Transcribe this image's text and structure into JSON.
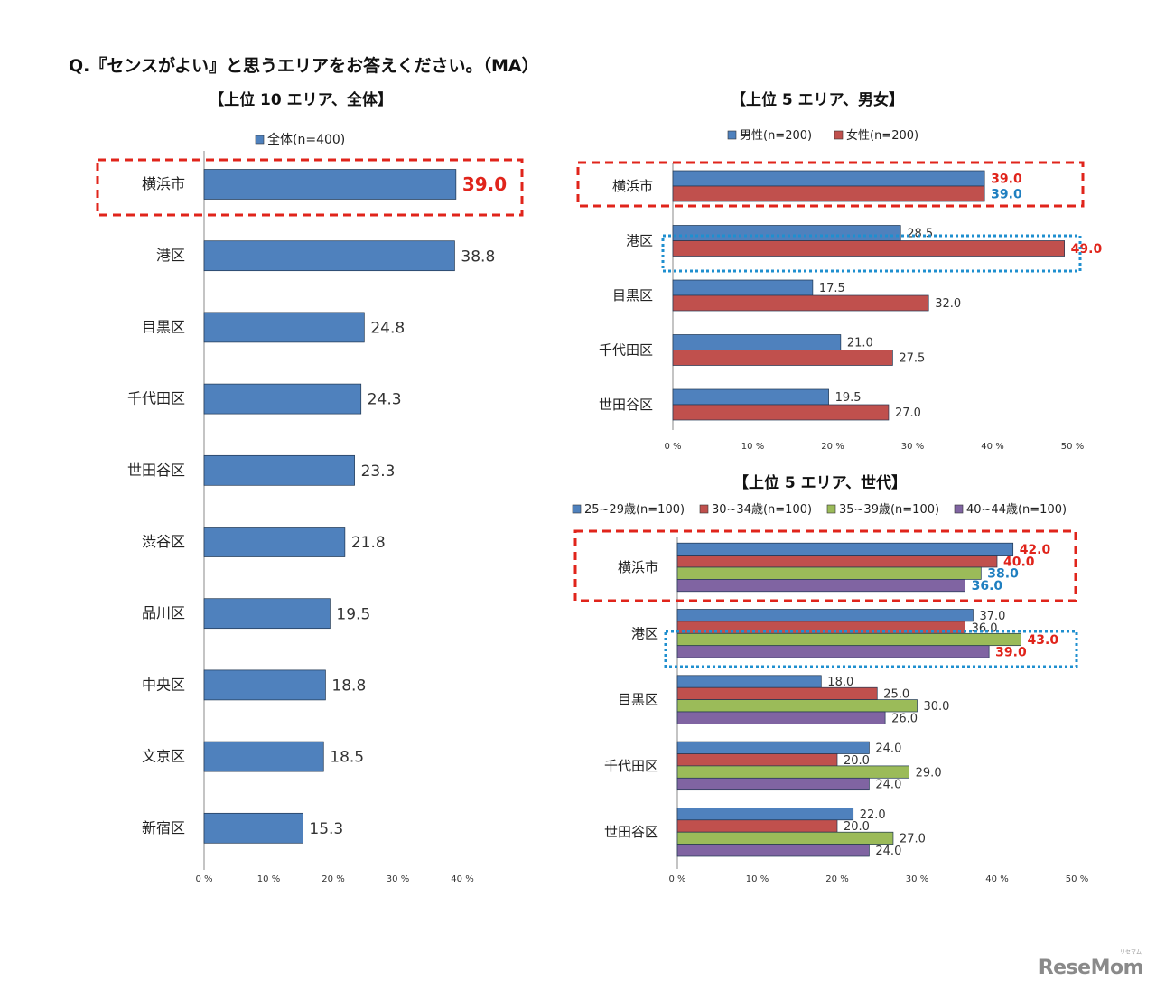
{
  "question": "Q.『センスがよい』と思うエリアをお答えください。（MA）",
  "watermark": "ReseMom",
  "watermark_sub": "リセマム",
  "colors": {
    "blue": "#4f81bd",
    "red": "#c0504d",
    "green": "#9bbb59",
    "purple": "#8064a2",
    "highlight_red": "#e0241b",
    "highlight_blue": "#1f7fc0",
    "frame_blue": "#1f8fcf"
  },
  "chart_data": [
    {
      "type": "bar",
      "title": "【上位 10 エリア、全体】",
      "orientation": "horizontal",
      "categories": [
        "横浜市",
        "港区",
        "目黒区",
        "千代田区",
        "世田谷区",
        "渋谷区",
        "品川区",
        "中央区",
        "文京区",
        "新宿区"
      ],
      "series": [
        {
          "name": "全体(n=400)",
          "color": "blue",
          "values": [
            39.0,
            38.8,
            24.8,
            24.3,
            23.3,
            21.8,
            19.5,
            18.8,
            18.5,
            15.3
          ],
          "labels": [
            "39.0",
            "38.8",
            "24.8",
            "24.3",
            "23.3",
            "21.8",
            "19.5",
            "18.8",
            "18.5",
            "15.3"
          ],
          "label_colors": [
            "highlight_red",
            "",
            "",
            "",
            "",
            "",
            "",
            "",
            "",
            ""
          ]
        }
      ],
      "xlim": [
        0,
        40
      ],
      "xticks": [
        "0 %",
        "10 %",
        "20 %",
        "30 %",
        "40 %"
      ],
      "legend": "top",
      "highlight": "横浜市 red dashed frame"
    },
    {
      "type": "bar",
      "title": "【上位 5 エリア、男女】",
      "orientation": "horizontal",
      "categories": [
        "横浜市",
        "港区",
        "目黒区",
        "千代田区",
        "世田谷区"
      ],
      "series": [
        {
          "name": "男性(n=200)",
          "color": "blue",
          "values": [
            39.0,
            28.5,
            17.5,
            21.0,
            19.5
          ],
          "labels": [
            "39.0",
            "28.5",
            "17.5",
            "21.0",
            "19.5"
          ],
          "label_colors": [
            "highlight_red",
            "",
            "",
            "",
            ""
          ]
        },
        {
          "name": "女性(n=200)",
          "color": "red",
          "values": [
            39.0,
            49.0,
            32.0,
            27.5,
            27.0
          ],
          "labels": [
            "39.0",
            "49.0",
            "32.0",
            "27.5",
            "27.0"
          ],
          "label_colors": [
            "highlight_blue",
            "highlight_red",
            "",
            "",
            ""
          ]
        }
      ],
      "xlim": [
        0,
        50
      ],
      "xticks": [
        "0 %",
        "10 %",
        "20 %",
        "30 %",
        "40 %",
        "50 %"
      ],
      "legend": "top"
    },
    {
      "type": "bar",
      "title": "【上位 5 エリア、世代】",
      "orientation": "horizontal",
      "categories": [
        "横浜市",
        "港区",
        "目黒区",
        "千代田区",
        "世田谷区"
      ],
      "series": [
        {
          "name": "25~29歳(n=100)",
          "color": "blue",
          "values": [
            42.0,
            37.0,
            18.0,
            24.0,
            22.0
          ],
          "labels": [
            "42.0",
            "37.0",
            "18.0",
            "24.0",
            "22.0"
          ],
          "label_colors": [
            "highlight_red",
            "",
            "",
            "",
            ""
          ]
        },
        {
          "name": "30~34歳(n=100)",
          "color": "red",
          "values": [
            40.0,
            36.0,
            25.0,
            20.0,
            20.0
          ],
          "labels": [
            "40.0",
            "36.0",
            "25.0",
            "20.0",
            "20.0"
          ],
          "label_colors": [
            "highlight_red",
            "",
            "",
            "",
            ""
          ]
        },
        {
          "name": "35~39歳(n=100)",
          "color": "green",
          "values": [
            38.0,
            43.0,
            30.0,
            29.0,
            27.0
          ],
          "labels": [
            "38.0",
            "43.0",
            "30.0",
            "29.0",
            "27.0"
          ],
          "label_colors": [
            "highlight_blue",
            "highlight_red",
            "",
            "",
            ""
          ]
        },
        {
          "name": "40~44歳(n=100)",
          "color": "purple",
          "values": [
            36.0,
            39.0,
            26.0,
            24.0,
            24.0
          ],
          "labels": [
            "36.0",
            "39.0",
            "26.0",
            "24.0",
            "24.0"
          ],
          "label_colors": [
            "highlight_blue",
            "highlight_red",
            "",
            "",
            ""
          ]
        }
      ],
      "xlim": [
        0,
        50
      ],
      "xticks": [
        "0 %",
        "10 %",
        "20 %",
        "30 %",
        "40 %",
        "50 %"
      ],
      "legend": "top"
    }
  ]
}
